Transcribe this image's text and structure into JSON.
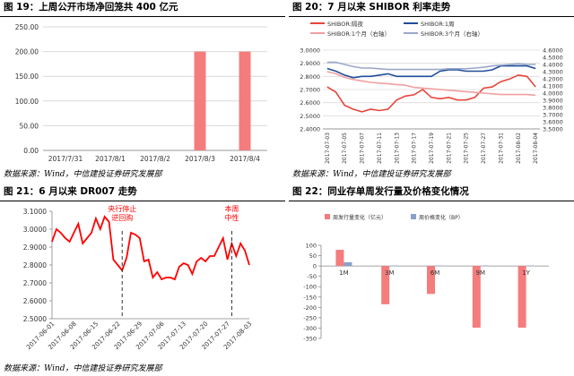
{
  "panels": {
    "p19": {
      "title": "图 19：上周公开市场净回笼共 400 亿元",
      "source": "数据来源：Wind，中信建投证券研究发展部"
    },
    "p20": {
      "title": "图 20：7 月以来 SHIBOR 利率走势",
      "source": "数据来源：Wind，中信建投证券研究发展部"
    },
    "p21": {
      "title": "图 21：6 月以来 DR007 走势",
      "source": "数据来源：Wind，中信建投证券研究发展部"
    },
    "p22": {
      "title": "图 22：同业存单周发行量及价格变化情况",
      "source": ""
    }
  },
  "chart_data": [
    {
      "id": "c19",
      "type": "bar",
      "categories": [
        "2017/7/31",
        "2017/8/1",
        "2017/8/2",
        "2017/8/3",
        "2017/8/4"
      ],
      "values": [
        0,
        0,
        0,
        200,
        200
      ],
      "ylim": [
        0,
        250
      ],
      "yticks": [
        "0.00",
        "50.00",
        "100.00",
        "150.00",
        "200.00",
        "250.00"
      ],
      "bar_color": "#f47c7c",
      "grid": true
    },
    {
      "id": "c20",
      "type": "line",
      "x": [
        "2017-07-03",
        "2017-07-04",
        "2017-07-05",
        "2017-07-06",
        "2017-07-07",
        "2017-07-10",
        "2017-07-11",
        "2017-07-12",
        "2017-07-13",
        "2017-07-14",
        "2017-07-17",
        "2017-07-18",
        "2017-07-19",
        "2017-07-20",
        "2017-07-21",
        "2017-07-24",
        "2017-07-25",
        "2017-07-26",
        "2017-07-27",
        "2017-07-28",
        "2017-07-31",
        "2017-08-01",
        "2017-08-02",
        "2017-08-03",
        "2017-08-04"
      ],
      "legend": [
        "SHIBOR:隔夜",
        "SHIBOR:1周",
        "SHIBOR:1个月（右轴）",
        "SHIBOR:3个月（右轴）"
      ],
      "series": [
        {
          "name": "SHIBOR:隔夜",
          "axis": "left",
          "color": "#e8453c",
          "values": [
            2.72,
            2.68,
            2.58,
            2.55,
            2.53,
            2.55,
            2.54,
            2.55,
            2.62,
            2.65,
            2.66,
            2.7,
            2.64,
            2.63,
            2.64,
            2.62,
            2.62,
            2.64,
            2.71,
            2.72,
            2.76,
            2.78,
            2.81,
            2.8,
            2.72
          ]
        },
        {
          "name": "SHIBOR:1周",
          "axis": "left",
          "color": "#1f4e9a",
          "values": [
            2.86,
            2.84,
            2.81,
            2.79,
            2.8,
            2.8,
            2.81,
            2.82,
            2.8,
            2.8,
            2.8,
            2.8,
            2.8,
            2.84,
            2.85,
            2.85,
            2.84,
            2.84,
            2.84,
            2.85,
            2.88,
            2.88,
            2.88,
            2.88,
            2.86
          ]
        },
        {
          "name": "SHIBOR:1个月（右轴）",
          "axis": "right",
          "color": "#f2a0a0",
          "values": [
            4.3,
            4.27,
            4.22,
            4.19,
            4.17,
            4.15,
            4.14,
            4.13,
            4.12,
            4.11,
            4.08,
            4.07,
            4.06,
            4.05,
            4.04,
            4.03,
            4.02,
            4.01,
            4.0,
            3.99,
            3.98,
            3.98,
            3.98,
            3.98,
            3.97
          ]
        },
        {
          "name": "SHIBOR:3个月（右轴）",
          "axis": "right",
          "color": "#9aa7c9",
          "values": [
            4.43,
            4.43,
            4.4,
            4.37,
            4.35,
            4.35,
            4.34,
            4.33,
            4.33,
            4.33,
            4.33,
            4.33,
            4.33,
            4.33,
            4.34,
            4.34,
            4.34,
            4.35,
            4.36,
            4.38,
            4.39,
            4.4,
            4.41,
            4.4,
            4.4
          ]
        }
      ],
      "ylim_left": [
        2.4,
        3.0
      ],
      "yticks_left": [
        "2.4000",
        "2.5000",
        "2.6000",
        "2.7000",
        "2.8000",
        "2.9000",
        "3.0000"
      ],
      "ylim_right": [
        3.5,
        4.6
      ],
      "yticks_right": [
        "3.5000",
        "3.6000",
        "3.7000",
        "3.8000",
        "3.9000",
        "4.0000",
        "4.1000",
        "4.2000",
        "4.3000",
        "4.4000",
        "4.5000",
        "4.6000"
      ],
      "grid": true
    },
    {
      "id": "c21",
      "type": "line",
      "x": [
        "2017-06-01",
        "2017-06-02",
        "2017-06-05",
        "2017-06-06",
        "2017-06-07",
        "2017-06-08",
        "2017-06-09",
        "2017-06-12",
        "2017-06-13",
        "2017-06-14",
        "2017-06-15",
        "2017-06-16",
        "2017-06-19",
        "2017-06-20",
        "2017-06-21",
        "2017-06-22",
        "2017-06-23",
        "2017-06-26",
        "2017-06-27",
        "2017-06-28",
        "2017-06-29",
        "2017-06-30",
        "2017-07-03",
        "2017-07-04",
        "2017-07-05",
        "2017-07-06",
        "2017-07-07",
        "2017-07-10",
        "2017-07-11",
        "2017-07-12",
        "2017-07-13",
        "2017-07-14",
        "2017-07-17",
        "2017-07-18",
        "2017-07-19",
        "2017-07-20",
        "2017-07-21",
        "2017-07-24",
        "2017-07-25",
        "2017-07-26",
        "2017-07-27",
        "2017-07-28",
        "2017-07-31",
        "2017-08-01",
        "2017-08-02",
        "2017-08-03"
      ],
      "x_ticks": [
        "2017-06-01",
        "2017-06-08",
        "2017-06-15",
        "2017-06-22",
        "2017-06-29",
        "2017-07-06",
        "2017-07-13",
        "2017-07-20",
        "2017-07-27",
        "2017-08-03"
      ],
      "series": [
        {
          "name": "DR007",
          "color": "#ff0000",
          "values": [
            2.93,
            3.0,
            2.98,
            2.95,
            2.93,
            2.98,
            3.03,
            2.92,
            2.95,
            2.98,
            3.06,
            3.0,
            3.07,
            3.04,
            2.83,
            2.8,
            2.77,
            2.84,
            2.98,
            2.97,
            2.95,
            2.82,
            2.83,
            2.73,
            2.76,
            2.72,
            2.73,
            2.73,
            2.72,
            2.79,
            2.81,
            2.8,
            2.75,
            2.82,
            2.84,
            2.82,
            2.85,
            2.85,
            2.9,
            2.95,
            2.83,
            2.92,
            2.85,
            2.92,
            2.88,
            2.8
          ]
        }
      ],
      "ylim": [
        2.5,
        3.1
      ],
      "yticks": [
        "2.5000",
        "2.6000",
        "2.7000",
        "2.8000",
        "2.9000",
        "3.0000",
        "3.1000"
      ],
      "annotations": [
        {
          "text": [
            "央行停止",
            "逆回购"
          ],
          "x": "2017-06-23"
        },
        {
          "text": [
            "本周",
            "中性"
          ],
          "x": "2017-07-28"
        }
      ],
      "grid": false
    },
    {
      "id": "c22",
      "type": "bar",
      "categories": [
        "1M",
        "3M",
        "6M",
        "9M",
        "1Y"
      ],
      "legend": [
        "周发行量变化（亿元）",
        "周价格变化（BP）"
      ],
      "series": [
        {
          "name": "周发行量变化（亿元）",
          "color": "#f47c7c",
          "values": [
            78,
            -185,
            -135,
            -298,
            -298
          ]
        },
        {
          "name": "周价格变化（BP）",
          "color": "#8aa0c8",
          "values": [
            18,
            2,
            2,
            2,
            2
          ]
        }
      ],
      "ylim": [
        -350,
        100
      ],
      "yticks": [
        "-350",
        "-300",
        "-250",
        "-200",
        "-150",
        "-100",
        "-50",
        "0",
        "50",
        "100"
      ],
      "grid": false
    }
  ]
}
